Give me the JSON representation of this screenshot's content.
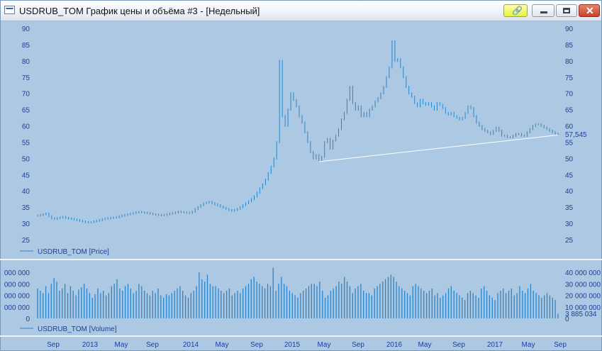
{
  "window": {
    "title": "USDRUB_TOM График цены и объёма #3 - [Недельный]",
    "icon": "chart-window-icon",
    "buttons": [
      "link-icon",
      "minimize-icon",
      "maximize-icon",
      "close-icon"
    ]
  },
  "colors": {
    "background": "#adc8e2",
    "series": "#2a86c8",
    "axis_text": "#1d3e9a",
    "trendline": "#ffffff"
  },
  "chart_data": [
    {
      "type": "bar",
      "series_name": "USDRUB_TOM [Price]",
      "ylim": [
        22,
        92
      ],
      "y_ticks": [
        25,
        30,
        35,
        40,
        45,
        50,
        55,
        60,
        65,
        70,
        75,
        80,
        85,
        90
      ],
      "last_value_label": "57,545",
      "grid": false,
      "legend": "bottom-left",
      "trendline": {
        "from": [
          "2015-05",
          49
        ],
        "to": [
          "2017-09",
          57.2
        ]
      },
      "weekly_values": [
        32.4,
        32.6,
        32.8,
        33.0,
        32.2,
        31.6,
        31.4,
        31.6,
        31.8,
        32.0,
        31.7,
        31.5,
        31.4,
        31.2,
        31.0,
        30.8,
        30.6,
        30.4,
        30.3,
        30.4,
        30.6,
        30.8,
        31.0,
        31.3,
        31.5,
        31.6,
        31.7,
        31.8,
        31.9,
        32.2,
        32.4,
        32.6,
        32.8,
        33.0,
        33.2,
        33.4,
        33.5,
        33.4,
        33.3,
        33.2,
        33.0,
        32.8,
        32.7,
        32.6,
        32.5,
        32.6,
        32.8,
        33.0,
        33.2,
        33.4,
        33.6,
        33.5,
        33.4,
        33.3,
        33.2,
        33.6,
        34.4,
        35.0,
        35.6,
        36.2,
        36.4,
        36.6,
        36.2,
        35.8,
        35.6,
        35.2,
        34.8,
        34.4,
        34.1,
        33.9,
        34.1,
        34.5,
        35.0,
        35.6,
        36.2,
        36.8,
        37.5,
        38.3,
        39.5,
        40.8,
        42.0,
        43.5,
        45.5,
        47.5,
        50.0,
        55.0,
        80.0,
        63.0,
        60.0,
        65.0,
        70.0,
        68.0,
        66.0,
        63.0,
        61.0,
        58.0,
        55.0,
        52.0,
        50.0,
        51.0,
        49.5,
        50.5,
        55.0,
        56.0,
        53.0,
        55.5,
        57.0,
        59.0,
        62.0,
        64.0,
        68.0,
        72.0,
        67.0,
        65.0,
        66.0,
        63.0,
        64.0,
        63.0,
        65.0,
        66.0,
        67.5,
        68.5,
        70.0,
        72.0,
        75.0,
        78.0,
        86.0,
        80.0,
        80.5,
        78.0,
        75.0,
        72.0,
        70.0,
        69.0,
        67.0,
        66.0,
        68.0,
        67.0,
        66.5,
        67.0,
        66.0,
        65.0,
        67.0,
        66.5,
        65.5,
        64.0,
        63.5,
        64.0,
        63.0,
        62.5,
        62.0,
        62.5,
        64.0,
        66.0,
        65.5,
        63.0,
        61.0,
        60.0,
        59.0,
        58.5,
        58.0,
        57.5,
        58.5,
        59.5,
        58.5,
        57.0,
        57.0,
        56.5,
        56.5,
        57.0,
        57.5,
        57.5,
        57.0,
        57.0,
        58.0,
        59.0,
        60.0,
        60.5,
        60.5,
        60.0,
        59.5,
        59.0,
        58.5,
        58.0,
        57.5,
        57.545
      ]
    },
    {
      "type": "bar",
      "series_name": "USDRUB_TOM [Volume]",
      "y_ticks_right": [
        "40 000 000",
        "30 000 000",
        "20 000 000",
        "10 000 000",
        "0"
      ],
      "y_ticks_left": [
        "000 000",
        "000 000",
        "000 000",
        "000 000",
        "0"
      ],
      "last_value_label": "3 885 034",
      "legend": "bottom-left",
      "x_tick_labels": [
        "Sep",
        "2013",
        "May",
        "Sep",
        "2014",
        "May",
        "Sep",
        "2015",
        "May",
        "Sep",
        "2016",
        "May",
        "Sep",
        "2017",
        "May",
        "Sep"
      ],
      "weekly_values_millions": [
        26,
        24,
        22,
        28,
        22,
        30,
        35,
        32,
        24,
        26,
        30,
        22,
        28,
        24,
        20,
        25,
        27,
        30,
        26,
        22,
        18,
        21,
        26,
        22,
        24,
        20,
        22,
        28,
        30,
        34,
        26,
        24,
        28,
        30,
        26,
        22,
        24,
        30,
        28,
        24,
        22,
        20,
        24,
        22,
        26,
        20,
        18,
        21,
        20,
        22,
        24,
        26,
        28,
        24,
        20,
        18,
        22,
        24,
        28,
        40,
        34,
        32,
        38,
        30,
        28,
        28,
        26,
        24,
        22,
        24,
        26,
        20,
        22,
        24,
        22,
        26,
        28,
        30,
        34,
        36,
        32,
        30,
        28,
        26,
        30,
        28,
        44,
        24,
        30,
        36,
        30,
        28,
        24,
        22,
        20,
        18,
        22,
        24,
        26,
        28,
        30,
        30,
        28,
        32,
        24,
        18,
        20,
        24,
        26,
        28,
        32,
        30,
        36,
        32,
        28,
        22,
        26,
        28,
        30,
        24,
        22,
        22,
        20,
        26,
        28,
        30,
        32,
        34,
        36,
        38,
        36,
        32,
        28,
        26,
        24,
        22,
        20,
        28,
        30,
        28,
        26,
        24,
        22,
        24,
        26,
        20,
        22,
        18,
        20,
        22,
        26,
        28,
        24,
        22,
        20,
        18,
        16,
        22,
        24,
        22,
        20,
        18,
        26,
        28,
        24,
        20,
        18,
        16,
        22,
        24,
        26,
        22,
        24,
        26,
        20,
        22,
        28,
        24,
        22,
        26,
        30,
        24,
        22,
        20,
        18,
        20,
        22,
        20,
        18,
        16,
        4
      ]
    }
  ]
}
